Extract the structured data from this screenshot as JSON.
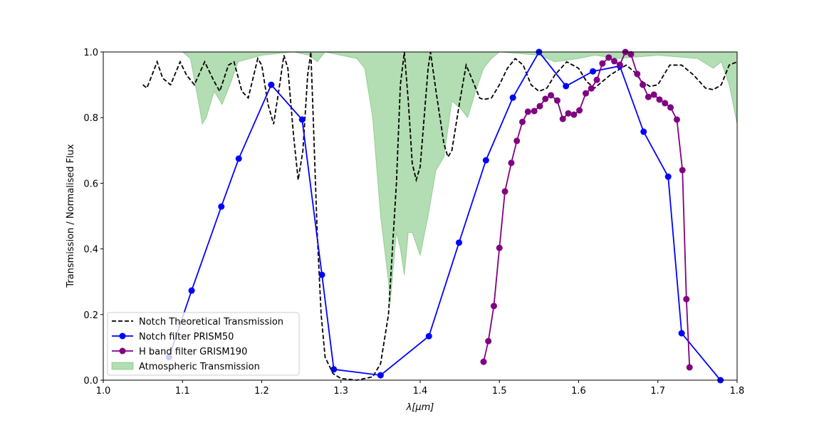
{
  "chart_data": {
    "type": "line",
    "xlabel": "λ[μm]",
    "ylabel": "Transmission / Normalised Flux",
    "xlim": [
      1.0,
      1.8
    ],
    "ylim": [
      0,
      1
    ],
    "xticks": [
      {
        "value": 1,
        "label": "1.0"
      },
      1.1,
      1.2,
      1.3,
      1.4,
      1.5,
      1.6,
      1.7,
      1.8
    ],
    "yticks": [
      {
        "value": 0,
        "label": "0.0"
      },
      0.2,
      0.4,
      0.6,
      0.8,
      {
        "value": 1,
        "label": "1.0"
      }
    ],
    "legend": "lower left",
    "series": [
      {
        "name": "Notch Theoretical Transmission",
        "color": "#000000",
        "kind": "line",
        "dashed": true,
        "marker": false,
        "x": [
          1.05,
          1.055,
          1.06,
          1.068,
          1.075,
          1.085,
          1.097,
          1.105,
          1.115,
          1.128,
          1.14,
          1.147,
          1.158,
          1.165,
          1.175,
          1.183,
          1.195,
          1.2,
          1.208,
          1.215,
          1.222,
          1.228,
          1.233,
          1.24,
          1.246,
          1.252,
          1.258,
          1.262,
          1.265,
          1.27,
          1.275,
          1.28,
          1.29,
          1.3,
          1.32,
          1.34,
          1.35,
          1.36,
          1.37,
          1.375,
          1.38,
          1.385,
          1.39,
          1.395,
          1.4,
          1.405,
          1.41,
          1.413,
          1.42,
          1.43,
          1.435,
          1.44,
          1.45,
          1.458,
          1.465,
          1.475,
          1.48,
          1.49,
          1.5,
          1.51,
          1.52,
          1.53,
          1.54,
          1.55,
          1.56,
          1.57,
          1.585,
          1.6,
          1.61,
          1.62,
          1.64,
          1.66,
          1.67,
          1.68,
          1.69,
          1.7,
          1.715,
          1.73,
          1.745,
          1.76,
          1.77,
          1.78,
          1.79,
          1.8
        ],
        "values": [
          0.9,
          0.89,
          0.92,
          0.97,
          0.92,
          0.9,
          0.97,
          0.93,
          0.9,
          0.97,
          0.91,
          0.88,
          0.96,
          0.97,
          0.88,
          0.86,
          0.98,
          0.96,
          0.84,
          0.78,
          0.89,
          0.99,
          0.95,
          0.75,
          0.61,
          0.7,
          0.93,
          1.0,
          0.8,
          0.45,
          0.2,
          0.07,
          0.02,
          0.005,
          0.0,
          0.01,
          0.05,
          0.2,
          0.6,
          0.9,
          1.0,
          0.85,
          0.66,
          0.61,
          0.65,
          0.8,
          0.95,
          1.0,
          0.88,
          0.72,
          0.68,
          0.7,
          0.85,
          0.96,
          0.92,
          0.86,
          0.855,
          0.86,
          0.9,
          0.95,
          0.98,
          0.96,
          0.9,
          0.88,
          0.89,
          0.93,
          0.97,
          0.95,
          0.91,
          0.89,
          0.93,
          0.96,
          0.94,
          0.91,
          0.895,
          0.9,
          0.96,
          0.96,
          0.93,
          0.89,
          0.885,
          0.9,
          0.96,
          0.97
        ]
      },
      {
        "name": "Notch filter PRISM50",
        "color": "#0000ff",
        "kind": "line",
        "dashed": false,
        "marker": true,
        "x": [
          1.083,
          1.1115,
          1.149,
          1.171,
          1.212,
          1.251,
          1.276,
          1.291,
          1.35,
          1.411,
          1.449,
          1.483,
          1.517,
          1.55,
          1.584,
          1.618,
          1.652,
          1.682,
          1.713,
          1.73,
          1.779
        ],
        "values": [
          0.07,
          0.273,
          0.529,
          0.675,
          0.9,
          0.794,
          0.321,
          0.033,
          0.015,
          0.134,
          0.419,
          0.67,
          0.861,
          1.0,
          0.896,
          0.941,
          0.957,
          0.757,
          0.62,
          0.143,
          0.0
        ]
      },
      {
        "name": "H band filter GRISM190",
        "color": "#800080",
        "kind": "line",
        "dashed": false,
        "marker": true,
        "x": [
          1.48,
          1.486,
          1.493,
          1.5,
          1.507,
          1.515,
          1.522,
          1.529,
          1.536,
          1.544,
          1.551,
          1.558,
          1.565,
          1.573,
          1.58,
          1.587,
          1.594,
          1.601,
          1.609,
          1.616,
          1.623,
          1.63,
          1.638,
          1.645,
          1.652,
          1.659,
          1.666,
          1.674,
          1.681,
          1.688,
          1.695,
          1.702,
          1.709,
          1.716,
          1.724,
          1.731,
          1.736,
          1.74
        ],
        "values": [
          0.056,
          0.119,
          0.226,
          0.403,
          0.575,
          0.662,
          0.729,
          0.787,
          0.818,
          0.82,
          0.835,
          0.857,
          0.868,
          0.852,
          0.796,
          0.813,
          0.809,
          0.822,
          0.874,
          0.889,
          0.915,
          0.965,
          0.983,
          0.972,
          0.961,
          1.0,
          0.993,
          0.933,
          0.9,
          0.863,
          0.87,
          0.855,
          0.844,
          0.831,
          0.794,
          0.64,
          0.247,
          0.039
        ]
      },
      {
        "name": "Atmospheric Transmission",
        "color": "#2ca02c",
        "kind": "area",
        "dashed": false,
        "marker": false,
        "x": [
          1.0,
          1.1,
          1.11,
          1.12,
          1.125,
          1.13,
          1.14,
          1.15,
          1.16,
          1.17,
          1.2,
          1.24,
          1.26,
          1.27,
          1.28,
          1.3,
          1.32,
          1.33,
          1.34,
          1.35,
          1.36,
          1.362,
          1.37,
          1.375,
          1.38,
          1.385,
          1.39,
          1.4,
          1.41,
          1.42,
          1.43,
          1.44,
          1.45,
          1.46,
          1.47,
          1.48,
          1.49,
          1.5,
          1.55,
          1.57,
          1.6,
          1.62,
          1.65,
          1.7,
          1.75,
          1.77,
          1.78,
          1.79,
          1.8
        ],
        "values": [
          1.0,
          1.0,
          0.98,
          0.85,
          0.78,
          0.8,
          0.88,
          0.84,
          0.9,
          0.97,
          0.99,
          1.0,
          0.99,
          0.97,
          1.0,
          0.99,
          0.98,
          0.95,
          0.8,
          0.5,
          0.3,
          0.23,
          0.45,
          0.4,
          0.32,
          0.45,
          0.45,
          0.38,
          0.5,
          0.64,
          0.68,
          0.85,
          0.83,
          0.8,
          0.88,
          0.95,
          0.98,
          1.0,
          0.99,
          0.97,
          0.98,
          0.99,
          0.98,
          0.99,
          0.98,
          0.95,
          0.97,
          0.9,
          0.78
        ]
      }
    ]
  }
}
